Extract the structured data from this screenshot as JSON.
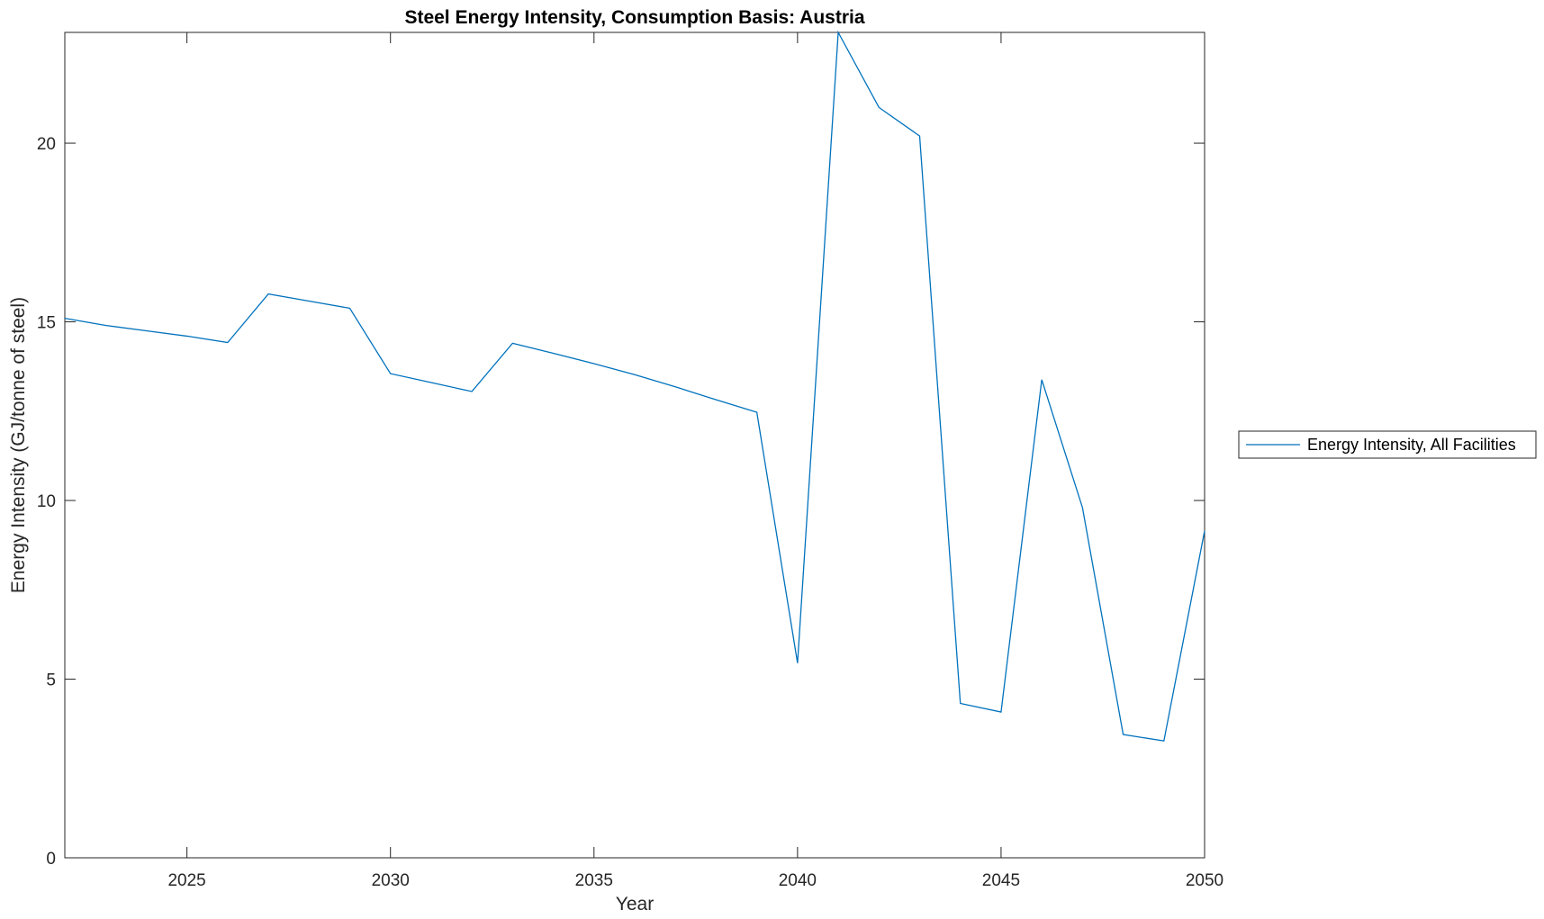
{
  "chart_data": {
    "type": "line",
    "title": "Steel Energy Intensity, Consumption Basis: Austria",
    "xlabel": "Year",
    "ylabel": "Energy Intensity (GJ/tonne of steel)",
    "xlim": [
      2022,
      2050
    ],
    "ylim": [
      0,
      23.1
    ],
    "xticks": [
      2025,
      2030,
      2035,
      2040,
      2045,
      2050
    ],
    "yticks": [
      0,
      5,
      10,
      15,
      20
    ],
    "grid": false,
    "legend_position": "outside-right",
    "x": [
      2022,
      2023,
      2024,
      2025,
      2026,
      2027,
      2028,
      2029,
      2030,
      2031,
      2032,
      2033,
      2034,
      2035,
      2036,
      2037,
      2038,
      2039,
      2040,
      2041,
      2042,
      2043,
      2044,
      2045,
      2046,
      2047,
      2048,
      2049,
      2050
    ],
    "series": [
      {
        "name": "Energy Intensity, All Facilities",
        "color": "#0072bd",
        "values": [
          15.1,
          14.9,
          14.75,
          14.6,
          14.42,
          15.78,
          15.58,
          15.38,
          13.55,
          13.3,
          13.05,
          14.4,
          14.12,
          13.83,
          13.52,
          13.18,
          12.82,
          12.47,
          5.45,
          23.1,
          21.0,
          20.2,
          4.32,
          4.08,
          13.38,
          9.8,
          3.45,
          3.27,
          9.15
        ]
      }
    ]
  }
}
